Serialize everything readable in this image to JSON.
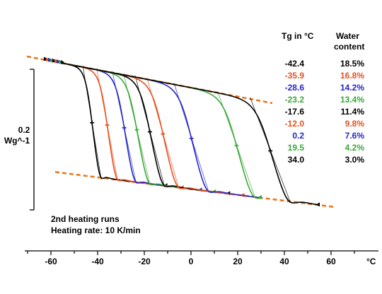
{
  "chart_data": {
    "type": "line",
    "title": "",
    "xlabel": "°C",
    "ylabel": "",
    "xlim": [
      -70,
      70
    ],
    "x_ticks": [
      -60,
      -40,
      -20,
      0,
      20,
      40,
      60
    ],
    "scale_bar": {
      "value_label": "0.2",
      "unit_label": "Wg^-1"
    },
    "annotations": [
      "2nd heating runs",
      "Heating rate: 10 K/min"
    ],
    "table": {
      "headers": [
        "Tg in °C",
        "Water",
        "content"
      ],
      "rows": [
        {
          "tg": "-42.4",
          "water": "18.5%",
          "color": "#000000"
        },
        {
          "tg": "-35.9",
          "water": "16.8%",
          "color": "#e8501e"
        },
        {
          "tg": "-28.6",
          "water": "14.2%",
          "color": "#2626c8"
        },
        {
          "tg": "-23.2",
          "water": "13.4%",
          "color": "#3aa83a"
        },
        {
          "tg": "-17.6",
          "water": "11.4%",
          "color": "#000000"
        },
        {
          "tg": "-12.0",
          "water": "9.8%",
          "color": "#e8501e"
        },
        {
          "tg": "0.2",
          "water": "7.6%",
          "color": "#2626c8"
        },
        {
          "tg": "19.5",
          "water": "4.2%",
          "color": "#3aa83a"
        },
        {
          "tg": "34.0",
          "water": "3.0%",
          "color": "#000000"
        }
      ]
    },
    "series": [
      {
        "tg": -42.4,
        "color": "#000000"
      },
      {
        "tg": -35.9,
        "color": "#e8501e"
      },
      {
        "tg": -28.6,
        "color": "#2626c8"
      },
      {
        "tg": -23.2,
        "color": "#3aa83a"
      },
      {
        "tg": -17.6,
        "color": "#000000"
      },
      {
        "tg": -12.0,
        "color": "#e8501e"
      },
      {
        "tg": 0.2,
        "color": "#2626c8"
      },
      {
        "tg": 19.5,
        "color": "#3aa83a"
      },
      {
        "tg": 34.0,
        "color": "#000000"
      }
    ],
    "baselines": {
      "color": "#e8761e",
      "style": "dashed"
    }
  }
}
